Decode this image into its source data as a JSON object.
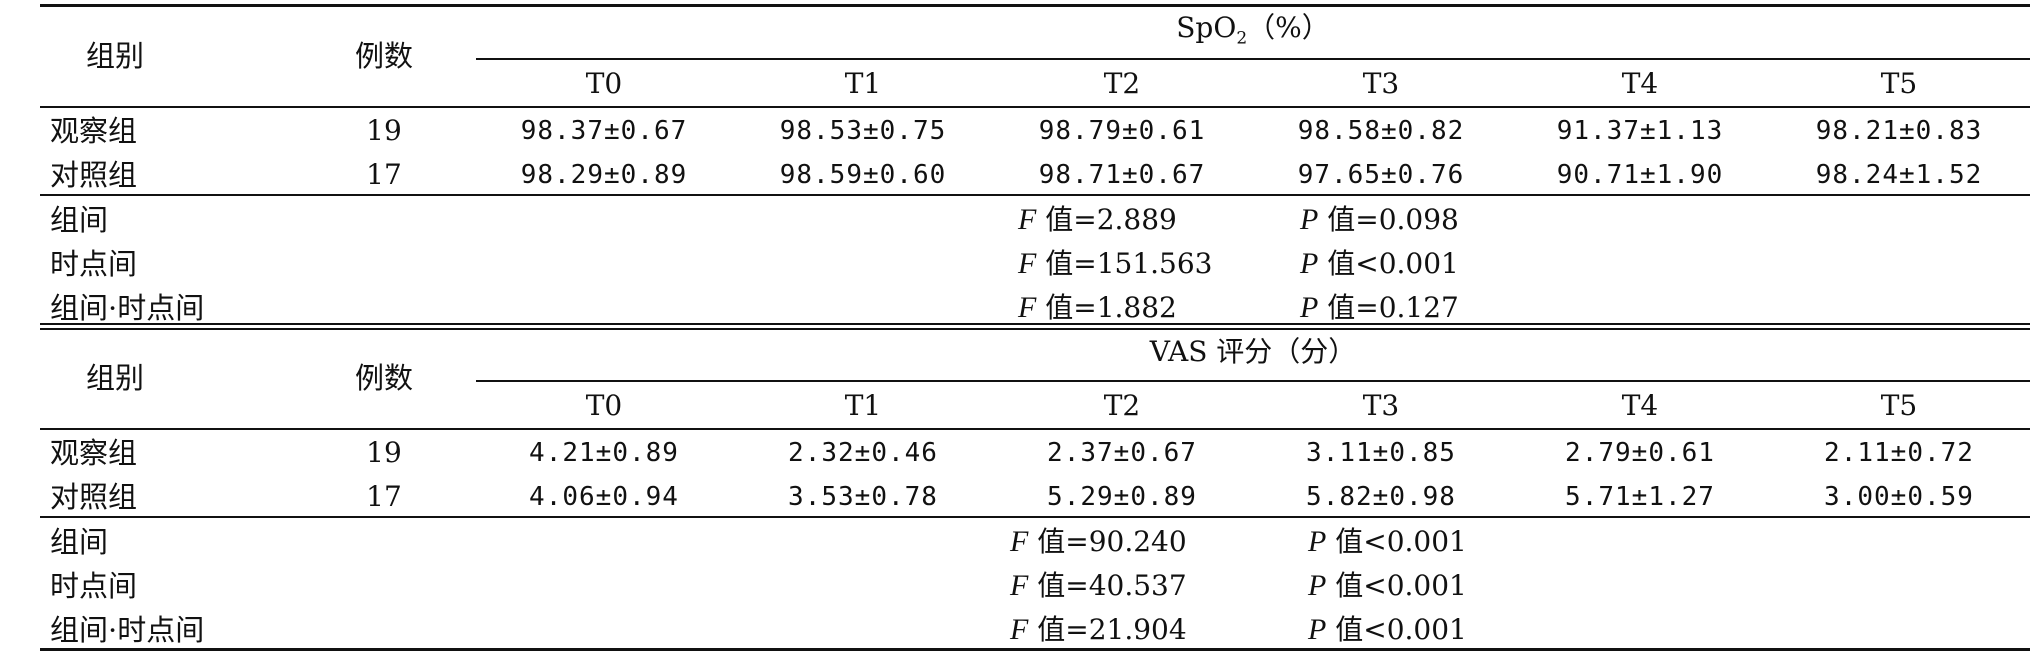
{
  "sections": [
    {
      "metric_base": "SpO",
      "metric_sub": "2",
      "metric_unit": "（%）",
      "group_header": "组别",
      "count_header": "例数",
      "timepoints": [
        "T0",
        "T1",
        "T2",
        "T3",
        "T4",
        "T5"
      ],
      "rows": [
        {
          "group": "观察组",
          "n": "19",
          "values": [
            "98.37±0.67",
            "98.53±0.75",
            "98.79±0.61",
            "98.58±0.82",
            "91.37±1.13",
            "98.21±0.83"
          ]
        },
        {
          "group": "对照组",
          "n": "17",
          "values": [
            "98.29±0.89",
            "98.59±0.60",
            "98.71±0.67",
            "97.65±0.76",
            "90.71±1.90",
            "98.24±1.52"
          ]
        }
      ],
      "stats": [
        {
          "label": "组间",
          "f_letter": "F",
          "f_text": " 值=2.889",
          "p_letter": "P",
          "p_text": " 值=0.098"
        },
        {
          "label": "时点间",
          "f_letter": "F",
          "f_text": " 值=151.563",
          "p_letter": "P",
          "p_text": " 值<0.001"
        },
        {
          "label": "组间·时点间",
          "f_letter": "F",
          "f_text": " 值=1.882",
          "p_letter": "P",
          "p_text": " 值=0.127"
        }
      ]
    },
    {
      "metric_base": "VAS 评分（分）",
      "metric_sub": "",
      "metric_unit": "",
      "group_header": "组别",
      "count_header": "例数",
      "timepoints": [
        "T0",
        "T1",
        "T2",
        "T3",
        "T4",
        "T5"
      ],
      "rows": [
        {
          "group": "观察组",
          "n": "19",
          "values": [
            "4.21±0.89",
            "2.32±0.46",
            "2.37±0.67",
            "3.11±0.85",
            "2.79±0.61",
            "2.11±0.72"
          ]
        },
        {
          "group": "对照组",
          "n": "17",
          "values": [
            "4.06±0.94",
            "3.53±0.78",
            "5.29±0.89",
            "5.82±0.98",
            "5.71±1.27",
            "3.00±0.59"
          ]
        }
      ],
      "stats": [
        {
          "label": "组间",
          "f_letter": "F",
          "f_text": " 值=90.240",
          "p_letter": "P",
          "p_text": " 值<0.001"
        },
        {
          "label": "时点间",
          "f_letter": "F",
          "f_text": " 值=40.537",
          "p_letter": "P",
          "p_text": " 值<0.001"
        },
        {
          "label": "组间·时点间",
          "f_letter": "F",
          "f_text": " 值=21.904",
          "p_letter": "P",
          "p_text": " 值<0.001"
        }
      ]
    }
  ]
}
